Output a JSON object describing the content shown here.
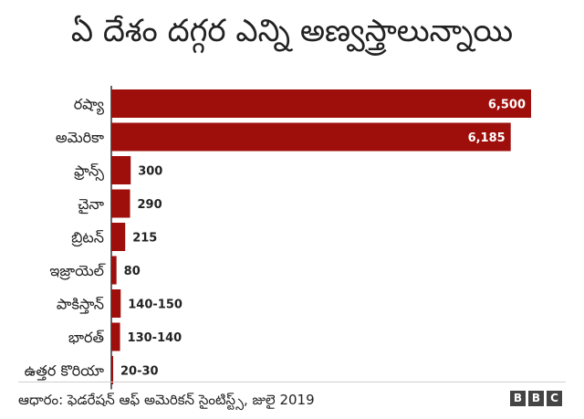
{
  "chart_data": {
    "type": "bar",
    "orientation": "horizontal",
    "title": "ఏ దేశం దగ్గర ఎన్ని అణ్వస్త్రాలున్నాయి",
    "categories": [
      "రష్యా",
      "అమెరికా",
      "ఫ్రాన్స్",
      "చైనా",
      "బ్రిటన్",
      "ఇజ్రాయెల్",
      "పాకిస్తాన్",
      "భారత్",
      "ఉత్తర కొరియా"
    ],
    "values": [
      6500,
      6185,
      300,
      290,
      215,
      80,
      145,
      135,
      25
    ],
    "value_labels": [
      "6,500",
      "6,185",
      "300",
      "290",
      "215",
      "80",
      "140-150",
      "130-140",
      "20-30"
    ],
    "xlim": [
      0,
      6500
    ],
    "bar_color": "#9e0e0b",
    "grid": false,
    "legend": "none"
  },
  "footer": {
    "source": "ఆధారం: ఫెడరేషన్ ఆఫ్ అమెరికన్ సైంటిస్ట్స్, జులై 2019",
    "logo_letters": [
      "B",
      "B",
      "C"
    ]
  }
}
